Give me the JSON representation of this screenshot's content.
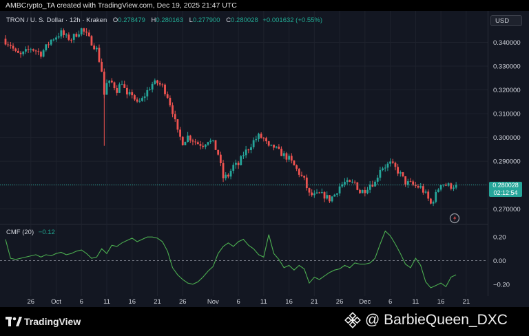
{
  "header": {
    "credit_line": "AMBCrypto_TA created with TradingView.com, Dec 19, 2025 21:47 UTC"
  },
  "legend": {
    "symbol": "TRON / U. S. Dollar · 12h · Kraken",
    "open_label": "O",
    "open": "0.278479",
    "high_label": "H",
    "high": "0.280163",
    "low_label": "L",
    "low": "0.277900",
    "close_label": "C",
    "close": "0.280028",
    "change": "+0.001632 (+0.55%)"
  },
  "currency_button": "USD",
  "price_tag": {
    "price": "0.280028",
    "countdown": "02:12:54"
  },
  "indicator": {
    "name": "CMF (20)",
    "value": "−0.12"
  },
  "footer": {
    "brand": "TradingView",
    "watermark": "@ BarbieQueen_DXC"
  },
  "colors": {
    "up": "#26a69a",
    "down": "#ef5350",
    "cmf": "#4caf50",
    "price_tag": "#26a69a",
    "background": "#131722"
  },
  "icons": [
    "tradingview-logo-icon",
    "binance-logo-icon",
    "replay-icon"
  ],
  "chart_data": [
    {
      "type": "candlestick",
      "series_name": "TRON / U. S. Dollar",
      "timeframe": "12h",
      "y_ticks": [
        "0.270000",
        "0.280000",
        "0.290000",
        "0.300000",
        "0.310000",
        "0.320000",
        "0.330000",
        "0.340000"
      ],
      "ylim": [
        0.264,
        0.352
      ],
      "x_ticks": [
        "26",
        "Oct",
        "6",
        "11",
        "16",
        "21",
        "26",
        "Nov",
        "6",
        "11",
        "16",
        "21",
        "26",
        "Dec",
        "6",
        "11",
        "16",
        "21"
      ],
      "x_tick_dates": [
        "2025-09-26",
        "2025-10-01",
        "2025-10-06",
        "2025-10-11",
        "2025-10-16",
        "2025-10-21",
        "2025-10-26",
        "2025-11-01",
        "2025-11-06",
        "2025-11-11",
        "2025-11-16",
        "2025-11-21",
        "2025-11-26",
        "2025-12-01",
        "2025-12-06",
        "2025-12-11",
        "2025-12-16",
        "2025-12-21"
      ],
      "x_start": "2025-09-21",
      "candle_interval_hours": 12,
      "last_price": 0.280028,
      "close_path": [
        [
          "2025-09-21",
          0.3405
        ],
        [
          "2025-09-22",
          0.339
        ],
        [
          "2025-09-23",
          0.3355
        ],
        [
          "2025-09-24",
          0.3345
        ],
        [
          "2025-09-25",
          0.336
        ],
        [
          "2025-09-26",
          0.3375
        ],
        [
          "2025-09-27",
          0.3365
        ],
        [
          "2025-09-28",
          0.3352
        ],
        [
          "2025-09-29",
          0.338
        ],
        [
          "2025-09-30",
          0.341
        ],
        [
          "2025-10-01",
          0.3425
        ],
        [
          "2025-10-02",
          0.344
        ],
        [
          "2025-10-03",
          0.342
        ],
        [
          "2025-10-04",
          0.3415
        ],
        [
          "2025-10-05",
          0.3435
        ],
        [
          "2025-10-06",
          0.3455
        ],
        [
          "2025-10-07",
          0.343
        ],
        [
          "2025-10-08",
          0.34
        ],
        [
          "2025-10-09",
          0.337
        ],
        [
          "2025-10-10",
          0.328
        ],
        [
          "2025-10-10T12:00",
          0.318
        ],
        [
          "2025-10-11",
          0.3225
        ],
        [
          "2025-10-12",
          0.323
        ],
        [
          "2025-10-13",
          0.32
        ],
        [
          "2025-10-14",
          0.3235
        ],
        [
          "2025-10-15",
          0.317
        ],
        [
          "2025-10-16",
          0.3185
        ],
        [
          "2025-10-17",
          0.314
        ],
        [
          "2025-10-18",
          0.316
        ],
        [
          "2025-10-19",
          0.3195
        ],
        [
          "2025-10-20",
          0.3225
        ],
        [
          "2025-10-21",
          0.323
        ],
        [
          "2025-10-22",
          0.3215
        ],
        [
          "2025-10-23",
          0.3175
        ],
        [
          "2025-10-24",
          0.311
        ],
        [
          "2025-10-25",
          0.302
        ],
        [
          "2025-10-26",
          0.298
        ],
        [
          "2025-10-27",
          0.3005
        ],
        [
          "2025-10-28",
          0.299
        ],
        [
          "2025-10-29",
          0.2975
        ],
        [
          "2025-10-30",
          0.297
        ],
        [
          "2025-10-31",
          0.299
        ],
        [
          "2025-11-01",
          0.2975
        ],
        [
          "2025-11-02",
          0.293
        ],
        [
          "2025-11-03",
          0.283
        ],
        [
          "2025-11-04",
          0.284
        ],
        [
          "2025-11-05",
          0.288
        ],
        [
          "2025-11-06",
          0.2885
        ],
        [
          "2025-11-07",
          0.293
        ],
        [
          "2025-11-08",
          0.2955
        ],
        [
          "2025-11-09",
          0.2985
        ],
        [
          "2025-11-10",
          0.3005
        ],
        [
          "2025-11-11",
          0.2995
        ],
        [
          "2025-11-12",
          0.2955
        ],
        [
          "2025-11-13",
          0.296
        ],
        [
          "2025-11-14",
          0.294
        ],
        [
          "2025-11-15",
          0.2925
        ],
        [
          "2025-11-16",
          0.291
        ],
        [
          "2025-11-17",
          0.288
        ],
        [
          "2025-11-18",
          0.285
        ],
        [
          "2025-11-19",
          0.282
        ],
        [
          "2025-11-20",
          0.276
        ],
        [
          "2025-11-21",
          0.2755
        ],
        [
          "2025-11-22",
          0.276
        ],
        [
          "2025-11-23",
          0.2755
        ],
        [
          "2025-11-24",
          0.274
        ],
        [
          "2025-11-25",
          0.276
        ],
        [
          "2025-11-26",
          0.2795
        ],
        [
          "2025-11-27",
          0.281
        ],
        [
          "2025-11-28",
          0.2805
        ],
        [
          "2025-11-29",
          0.281
        ],
        [
          "2025-11-30",
          0.277
        ],
        [
          "2025-12-01",
          0.278
        ],
        [
          "2025-12-02",
          0.2805
        ],
        [
          "2025-12-03",
          0.281
        ],
        [
          "2025-12-04",
          0.287
        ],
        [
          "2025-12-05",
          0.288
        ],
        [
          "2025-12-06",
          0.289
        ],
        [
          "2025-12-07",
          0.287
        ],
        [
          "2025-12-08",
          0.2845
        ],
        [
          "2025-12-09",
          0.281
        ],
        [
          "2025-12-10",
          0.2805
        ],
        [
          "2025-12-11",
          0.2795
        ],
        [
          "2025-12-12",
          0.279
        ],
        [
          "2025-12-13",
          0.276
        ],
        [
          "2025-12-14",
          0.272
        ],
        [
          "2025-12-15",
          0.276
        ],
        [
          "2025-12-16",
          0.281
        ],
        [
          "2025-12-17",
          0.28
        ],
        [
          "2025-12-18",
          0.2795
        ],
        [
          "2025-12-19",
          0.28
        ]
      ]
    },
    {
      "type": "line",
      "series_name": "CMF (20)",
      "y_ticks": [
        "0.20",
        "0.00",
        "−0.20"
      ],
      "ylim": [
        -0.3,
        0.3
      ],
      "zero_line": 0.0,
      "last_value": -0.12,
      "points": [
        [
          "2025-09-21",
          0.18
        ],
        [
          "2025-09-22",
          0.02
        ],
        [
          "2025-09-23",
          0.01
        ],
        [
          "2025-09-24",
          0.02
        ],
        [
          "2025-09-25",
          0.03
        ],
        [
          "2025-09-26",
          0.04
        ],
        [
          "2025-09-27",
          0.05
        ],
        [
          "2025-09-28",
          0.03
        ],
        [
          "2025-09-29",
          0.05
        ],
        [
          "2025-09-30",
          0.04
        ],
        [
          "2025-10-01",
          0.06
        ],
        [
          "2025-10-02",
          0.07
        ],
        [
          "2025-10-03",
          0.05
        ],
        [
          "2025-10-04",
          0.06
        ],
        [
          "2025-10-05",
          0.08
        ],
        [
          "2025-10-06",
          0.09
        ],
        [
          "2025-10-07",
          0.06
        ],
        [
          "2025-10-08",
          0.02
        ],
        [
          "2025-10-09",
          0.03
        ],
        [
          "2025-10-10",
          0.1
        ],
        [
          "2025-10-11",
          0.06
        ],
        [
          "2025-10-12",
          0.13
        ],
        [
          "2025-10-13",
          0.12
        ],
        [
          "2025-10-14",
          0.15
        ],
        [
          "2025-10-15",
          0.17
        ],
        [
          "2025-10-16",
          0.19
        ],
        [
          "2025-10-17",
          0.16
        ],
        [
          "2025-10-18",
          0.18
        ],
        [
          "2025-10-19",
          0.2
        ],
        [
          "2025-10-20",
          0.2
        ],
        [
          "2025-10-21",
          0.19
        ],
        [
          "2025-10-22",
          0.16
        ],
        [
          "2025-10-23",
          0.08
        ],
        [
          "2025-10-24",
          -0.06
        ],
        [
          "2025-10-25",
          -0.12
        ],
        [
          "2025-10-26",
          -0.16
        ],
        [
          "2025-10-27",
          -0.19
        ],
        [
          "2025-10-28",
          -0.2
        ],
        [
          "2025-10-29",
          -0.18
        ],
        [
          "2025-10-30",
          -0.14
        ],
        [
          "2025-10-31",
          -0.09
        ],
        [
          "2025-11-01",
          -0.05
        ],
        [
          "2025-11-02",
          0.06
        ],
        [
          "2025-11-03",
          0.12
        ],
        [
          "2025-11-04",
          0.15
        ],
        [
          "2025-11-05",
          0.12
        ],
        [
          "2025-11-06",
          0.16
        ],
        [
          "2025-11-07",
          0.18
        ],
        [
          "2025-11-08",
          0.13
        ],
        [
          "2025-11-09",
          0.1
        ],
        [
          "2025-11-10",
          0.05
        ],
        [
          "2025-11-11",
          0.03
        ],
        [
          "2025-11-12",
          0.22
        ],
        [
          "2025-11-13",
          0.06
        ],
        [
          "2025-11-14",
          0.01
        ],
        [
          "2025-11-15",
          -0.06
        ],
        [
          "2025-11-16",
          -0.04
        ],
        [
          "2025-11-17",
          -0.08
        ],
        [
          "2025-11-18",
          -0.04
        ],
        [
          "2025-11-19",
          -0.07
        ],
        [
          "2025-11-20",
          -0.19
        ],
        [
          "2025-11-21",
          -0.14
        ],
        [
          "2025-11-22",
          -0.16
        ],
        [
          "2025-11-23",
          -0.13
        ],
        [
          "2025-11-24",
          -0.1
        ],
        [
          "2025-11-25",
          -0.08
        ],
        [
          "2025-11-26",
          -0.07
        ],
        [
          "2025-11-27",
          -0.04
        ],
        [
          "2025-11-28",
          -0.06
        ],
        [
          "2025-11-29",
          -0.02
        ],
        [
          "2025-11-30",
          -0.03
        ],
        [
          "2025-12-01",
          -0.03
        ],
        [
          "2025-12-02",
          -0.02
        ],
        [
          "2025-12-03",
          0.02
        ],
        [
          "2025-12-04",
          0.14
        ],
        [
          "2025-12-05",
          0.25
        ],
        [
          "2025-12-06",
          0.21
        ],
        [
          "2025-12-07",
          0.14
        ],
        [
          "2025-12-08",
          0.06
        ],
        [
          "2025-12-09",
          -0.03
        ],
        [
          "2025-12-10",
          -0.06
        ],
        [
          "2025-12-11",
          0.02
        ],
        [
          "2025-12-12",
          -0.04
        ],
        [
          "2025-12-13",
          -0.18
        ],
        [
          "2025-12-14",
          -0.23
        ],
        [
          "2025-12-15",
          -0.21
        ],
        [
          "2025-12-16",
          -0.19
        ],
        [
          "2025-12-17",
          -0.22
        ],
        [
          "2025-12-18",
          -0.14
        ],
        [
          "2025-12-19",
          -0.12
        ]
      ]
    }
  ]
}
